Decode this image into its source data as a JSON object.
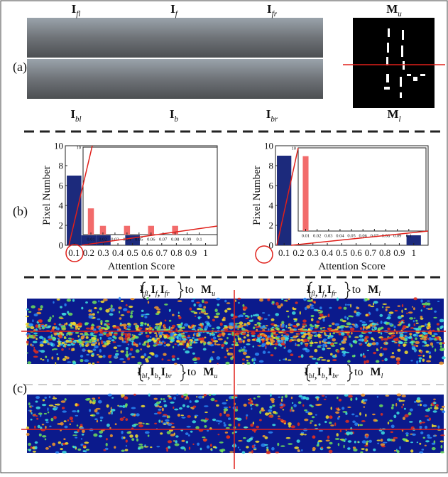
{
  "panels": {
    "a": "(a)",
    "b": "(b)",
    "c": "(c)"
  },
  "cameras": {
    "top": [
      {
        "main": "I",
        "sub": "fl"
      },
      {
        "main": "I",
        "sub": "f"
      },
      {
        "main": "I",
        "sub": "fr"
      }
    ],
    "bottom": [
      {
        "main": "I",
        "sub": "bl"
      },
      {
        "main": "I",
        "sub": "b"
      },
      {
        "main": "I",
        "sub": "br"
      }
    ]
  },
  "masks": {
    "upper": {
      "main": "M",
      "sub": "u"
    },
    "lower": {
      "main": "M",
      "sub": "l"
    }
  },
  "attention_maps": {
    "separator": ",",
    "connector": "to",
    "labels": [
      {
        "set": [
          {
            "main": "I",
            "sub": "fl"
          },
          {
            "main": "I",
            "sub": "f"
          },
          {
            "main": "I",
            "sub": "fr"
          }
        ],
        "target": {
          "main": "M",
          "sub": "u"
        }
      },
      {
        "set": [
          {
            "main": "I",
            "sub": "fl"
          },
          {
            "main": "I",
            "sub": "f"
          },
          {
            "main": "I",
            "sub": "fr"
          }
        ],
        "target": {
          "main": "M",
          "sub": "l"
        }
      },
      {
        "set": [
          {
            "main": "I",
            "sub": "bl"
          },
          {
            "main": "I",
            "sub": "b"
          },
          {
            "main": "I",
            "sub": "br"
          }
        ],
        "target": {
          "main": "M",
          "sub": "u"
        }
      },
      {
        "set": [
          {
            "main": "I",
            "sub": "bl"
          },
          {
            "main": "I",
            "sub": "b"
          },
          {
            "main": "I",
            "sub": "br"
          }
        ],
        "target": {
          "main": "M",
          "sub": "l"
        }
      }
    ]
  },
  "chart_data": [
    {
      "type": "bar",
      "xlabel": "Attention Score",
      "ylabel": "Pixel Number",
      "x": [
        0.1,
        0.2,
        0.3,
        0.5
      ],
      "values": [
        7,
        1,
        1,
        1
      ],
      "color": "#1c2a7c",
      "xlim": [
        0.04,
        1.08
      ],
      "ylim": [
        0,
        10
      ],
      "xticks": [
        0.1,
        0.2,
        0.3,
        0.4,
        0.5,
        0.6,
        0.7,
        0.8,
        0.9,
        1
      ],
      "yticks": [
        0,
        2,
        4,
        6,
        8,
        10
      ]
    },
    {
      "type": "bar",
      "x": [
        0.01,
        0.02,
        0.04,
        0.06,
        0.08
      ],
      "values": [
        3,
        1,
        1,
        1,
        1
      ],
      "color": "#f26b6b",
      "xlim": [
        0.0035,
        0.115
      ],
      "ylim": [
        0,
        10
      ],
      "xticks": [
        0.01,
        0.02,
        0.03,
        0.04,
        0.05,
        0.06,
        0.07,
        0.08,
        0.09,
        0.1
      ],
      "yticks": [
        10
      ]
    },
    {
      "type": "bar",
      "xlabel": "Attention Score",
      "ylabel": "Pixel Number",
      "x": [
        0.1,
        1
      ],
      "values": [
        9,
        1
      ],
      "color": "#1c2a7c",
      "xlim": [
        0.04,
        1.1
      ],
      "ylim": [
        0,
        10
      ],
      "xticks": [
        0.1,
        0.2,
        0.3,
        0.4,
        0.5,
        0.6,
        0.7,
        0.8,
        0.9,
        1
      ],
      "yticks": [
        0,
        2,
        4,
        6,
        8,
        10
      ]
    },
    {
      "type": "bar",
      "x": [
        0.01
      ],
      "values": [
        9
      ],
      "color": "#f26b6b",
      "xlim": [
        0.0035,
        0.115
      ],
      "ylim": [
        0,
        10
      ],
      "xticks": [
        0.01,
        0.02,
        0.03,
        0.04,
        0.05,
        0.06,
        0.07,
        0.08,
        0.09,
        0.1
      ],
      "yticks": [
        10
      ]
    }
  ]
}
